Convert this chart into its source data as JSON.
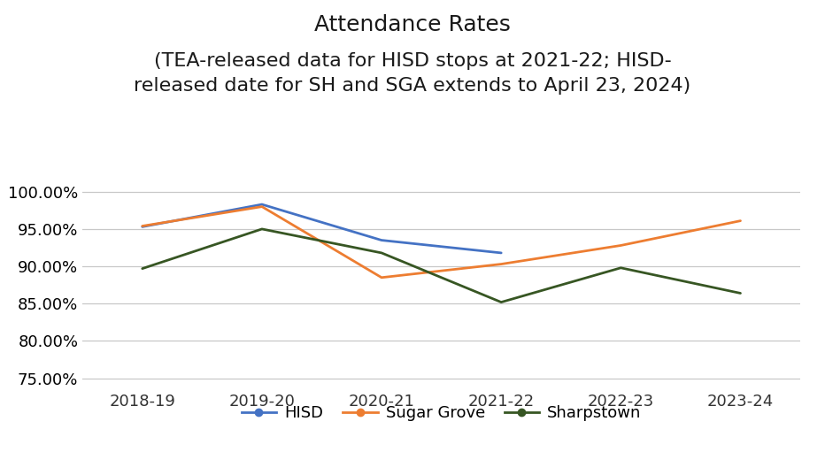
{
  "title_line1": "Attendance Rates",
  "title_line2": "(TEA-released data for HISD stops at 2021-22; HISD-\nreleased date for SH and SGA extends to April 23, 2024)",
  "x_labels": [
    "2018-19",
    "2019-20",
    "2020-21",
    "2021-22",
    "2022-23",
    "2023-24"
  ],
  "hisd": [
    95.3,
    98.3,
    93.5,
    91.8,
    null,
    null
  ],
  "sugar_grove": [
    95.4,
    98.0,
    88.5,
    90.3,
    92.8,
    96.1
  ],
  "sharpstown": [
    89.7,
    95.0,
    91.8,
    85.2,
    89.8,
    86.4
  ],
  "hisd_color": "#4472c4",
  "sugar_grove_color": "#ed7d31",
  "sharpstown_color": "#375623",
  "background_color": "#ffffff",
  "grid_color": "#c8c8c8",
  "ylim_min": 73.5,
  "ylim_max": 101.5,
  "yticks": [
    75.0,
    80.0,
    85.0,
    90.0,
    95.0,
    100.0
  ],
  "legend_labels": [
    "HISD",
    "Sugar Grove",
    "Sharpstown"
  ],
  "line_width": 2.0,
  "tick_fontsize": 13,
  "title_fontsize1": 18,
  "title_fontsize2": 16
}
